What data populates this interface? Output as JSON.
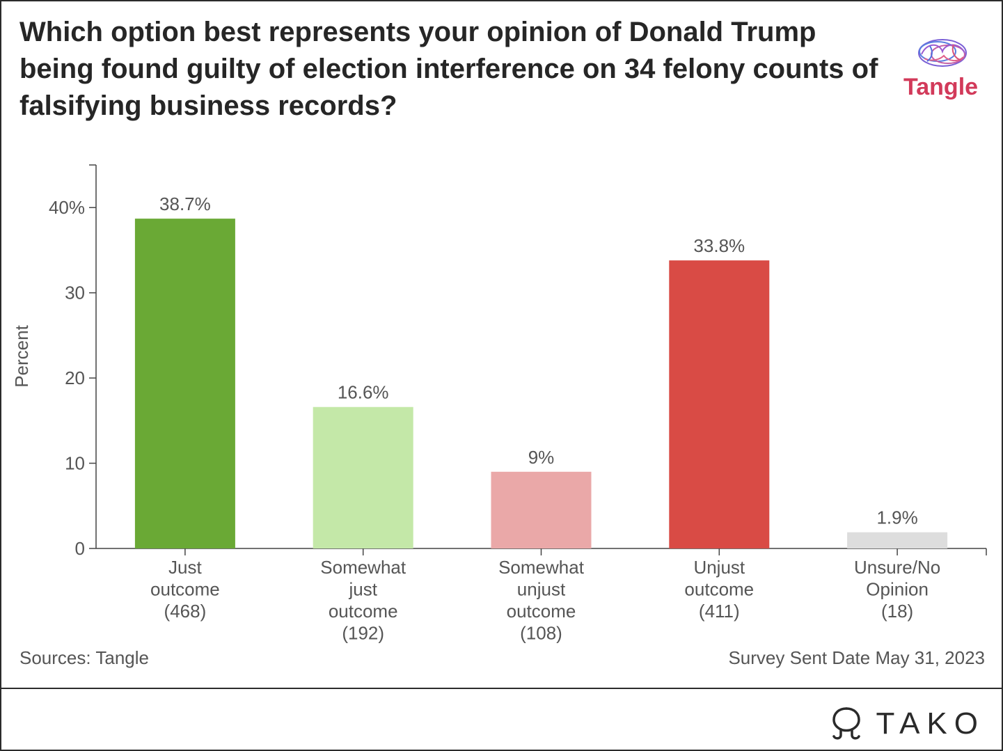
{
  "title": "Which option best represents your opinion of Donald Trump being found guilty of election interference on 34 felony counts of falsifying business records?",
  "brand": {
    "name": "Tangle",
    "logo_icon": "brain-icon",
    "color": "#d23a5a"
  },
  "footer": {
    "source": "Sources: Tangle",
    "note": "Survey Sent Date May 31, 2023"
  },
  "watermark": {
    "name": "TAKO",
    "icon": "tako-octopus-icon"
  },
  "chart_data": {
    "type": "bar",
    "ylabel": "Percent",
    "ylim": [
      0,
      45
    ],
    "yticks": [
      0,
      10,
      20,
      30,
      40
    ],
    "ytick_labels": [
      "0",
      "10",
      "20",
      "30",
      "40%"
    ],
    "grid": false,
    "categories": [
      [
        "Just",
        "outcome",
        "(468)"
      ],
      [
        "Somewhat",
        "just",
        "outcome",
        "(192)"
      ],
      [
        "Somewhat",
        "unjust",
        "outcome",
        "(108)"
      ],
      [
        "Unjust",
        "outcome",
        "(411)"
      ],
      [
        "Unsure/No",
        "Opinion",
        "(18)"
      ]
    ],
    "values": [
      38.7,
      16.6,
      9,
      33.8,
      1.9
    ],
    "value_labels": [
      "38.7%",
      "16.6%",
      "9%",
      "33.8%",
      "1.9%"
    ],
    "colors": [
      "#6aa935",
      "#c4e8a8",
      "#eaa8a8",
      "#d94b45",
      "#dddddd"
    ]
  }
}
